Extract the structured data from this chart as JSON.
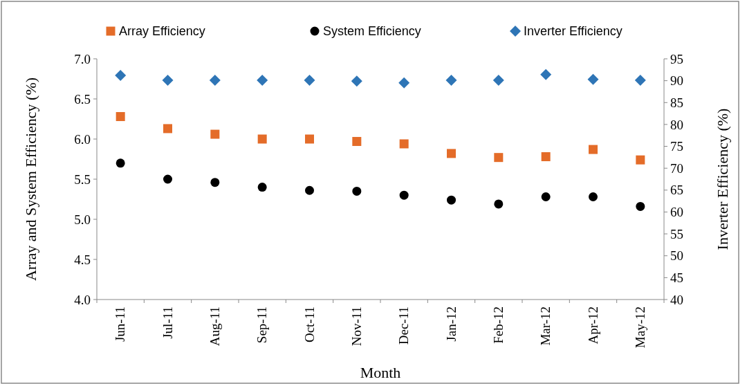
{
  "chart_data": {
    "type": "scatter",
    "xlabel": "Month",
    "ylabel": "Array and  System Efficiency (%)",
    "y2label": "Inverter Efficiency (%)",
    "categories": [
      "Jun-11",
      "Jul-11",
      "Aug-11",
      "Sep-11",
      "Oct-11",
      "Nov-11",
      "Dec-11",
      "Jan-12",
      "Feb-12",
      "Mar-12",
      "Apr-12",
      "May-12"
    ],
    "series": [
      {
        "name": "Array Efficiency",
        "color": "#e46c29",
        "marker": "square",
        "values": [
          6.28,
          6.13,
          6.06,
          6.0,
          6.0,
          5.97,
          5.94,
          5.82,
          5.77,
          5.78,
          5.87,
          5.74
        ]
      },
      {
        "name": "System Efficiency",
        "color": "#000000",
        "marker": "circle",
        "values": [
          5.7,
          5.5,
          5.46,
          5.4,
          5.36,
          5.35,
          5.3,
          5.24,
          5.19,
          5.28,
          5.28,
          5.16
        ]
      },
      {
        "name": "Inverter Efficiency",
        "color": "#2e75b6",
        "marker": "diamond",
        "axis": "y2",
        "values": [
          91.2,
          90.1,
          90.1,
          90.1,
          90.1,
          89.9,
          89.5,
          90.1,
          90.1,
          91.4,
          90.3,
          90.1
        ]
      }
    ],
    "ylim": [
      4.0,
      7.0
    ],
    "yticks": [
      {
        "value": 4,
        "label": "4.0"
      },
      4.5,
      {
        "value": 5,
        "label": "5.0"
      },
      5.5,
      {
        "value": 6,
        "label": "6.0"
      },
      6.5,
      {
        "value": 7,
        "label": "7.0"
      }
    ],
    "y2lim": [
      40,
      95
    ],
    "y2ticks": [
      40,
      45,
      50,
      55,
      60,
      65,
      70,
      75,
      80,
      85,
      90,
      95
    ],
    "legend": "top",
    "grid": false
  }
}
